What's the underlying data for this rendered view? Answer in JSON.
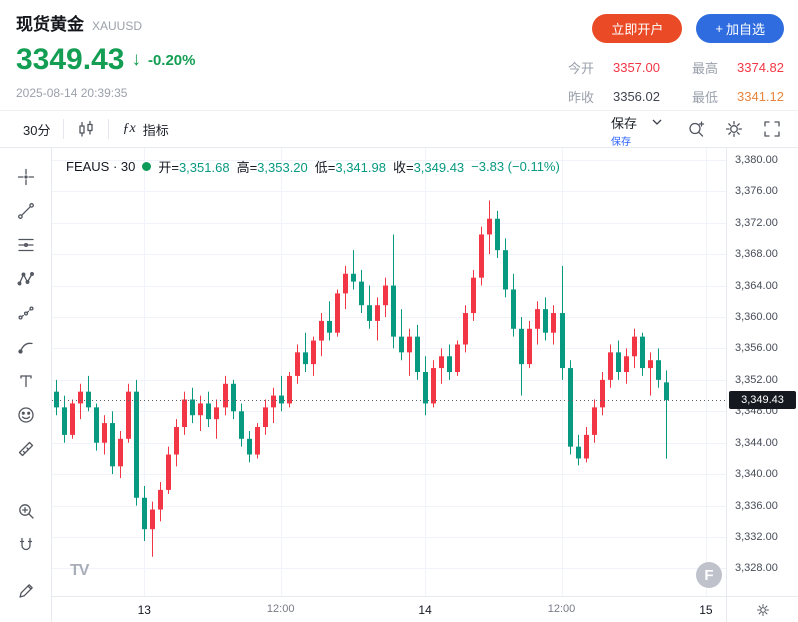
{
  "header": {
    "symbol_name": "现货黄金",
    "symbol_code": "XAUUSD",
    "price": "3349.43",
    "down_arrow": "↓",
    "change_percent": "-0.20%",
    "timestamp": "2025-08-14 20:39:35",
    "open_account": "立即开户",
    "plus": "+",
    "add_watchlist": "加自选",
    "stats": [
      {
        "label": "今开",
        "value": "3357.00",
        "color": "#f23645"
      },
      {
        "label": "最高",
        "value": "3374.82",
        "color": "#f23645"
      },
      {
        "label": "昨收",
        "value": "3356.02",
        "color": "#3f4450"
      },
      {
        "label": "最低",
        "value": "3341.12",
        "color": "#e8853d"
      }
    ],
    "colors": {
      "price_down_green": "#149e53",
      "open_account_bg": "#ea4a25",
      "watchlist_bg": "#2e6ce0"
    }
  },
  "toolbar": {
    "interval": "30分",
    "fx": "ƒx",
    "indicators": "指标",
    "save": "保存",
    "save_sub": "保存",
    "icons": [
      "candlestick-icon",
      "magnifier-icon",
      "settings-gear-icon",
      "fullscreen-icon"
    ]
  },
  "sidebar": {
    "tools": [
      "crosshair",
      "trend-line",
      "fib-retracement",
      "xabcd-pattern",
      "forecast",
      "brush",
      "text",
      "emoji",
      "ruler",
      "zoom-in",
      "magnet",
      "pencil"
    ]
  },
  "chart": {
    "legend": {
      "series": "FEAUS · 30",
      "o_label": "开=",
      "o": "3,351.68",
      "h_label": "高=",
      "h": "3,353.20",
      "l_label": "低=",
      "l": "3,341.98",
      "c_label": "收=",
      "c": "3,349.43",
      "change": "−3.83 (−0.11%)"
    },
    "price_badge": "3,349.43",
    "tv_logo": "TV",
    "watermark": "F"
  },
  "chart_data": {
    "type": "candlestick",
    "title": "现货黄金 XAUUSD 30分K线",
    "interval": "30m",
    "slots": 84,
    "ylim": [
      3324.5,
      3381.5
    ],
    "y_ticks": [
      3380,
      3376,
      3372,
      3368,
      3364,
      3360,
      3356,
      3352,
      3348,
      3344,
      3340,
      3336,
      3332,
      3328
    ],
    "x_ticks": [
      {
        "slot": 11,
        "label": "13",
        "major": true
      },
      {
        "slot": 28,
        "label": "12:00",
        "major": false
      },
      {
        "slot": 46,
        "label": "14",
        "major": true
      },
      {
        "slot": 63,
        "label": "12:00",
        "major": false
      },
      {
        "slot": 81,
        "label": "15",
        "major": true
      }
    ],
    "grid": true,
    "grid_color": "#f0f3fa",
    "up_color": "#f23645",
    "down_color": "#089981",
    "current_price": 3349.43,
    "price_line_color": "#59616f",
    "candles": [
      [
        3350.5,
        3352.0,
        3347.5,
        3348.5
      ],
      [
        3348.5,
        3350.0,
        3344.0,
        3345.0
      ],
      [
        3345.0,
        3349.5,
        3344.5,
        3349.0
      ],
      [
        3349.0,
        3351.5,
        3347.0,
        3350.5
      ],
      [
        3350.5,
        3352.5,
        3348.0,
        3348.5
      ],
      [
        3348.5,
        3349.0,
        3343.0,
        3344.0
      ],
      [
        3344.0,
        3347.5,
        3342.5,
        3346.5
      ],
      [
        3346.5,
        3348.0,
        3340.0,
        3341.0
      ],
      [
        3341.0,
        3345.5,
        3339.5,
        3344.5
      ],
      [
        3344.5,
        3351.5,
        3344.0,
        3350.5
      ],
      [
        3350.5,
        3352.0,
        3336.0,
        3337.0
      ],
      [
        3337.0,
        3338.5,
        3331.5,
        3333.0
      ],
      [
        3333.0,
        3336.5,
        3329.5,
        3335.5
      ],
      [
        3335.5,
        3339.0,
        3334.0,
        3338.0
      ],
      [
        3338.0,
        3343.5,
        3337.5,
        3342.5
      ],
      [
        3342.5,
        3347.0,
        3341.0,
        3346.0
      ],
      [
        3346.0,
        3350.5,
        3345.0,
        3349.5
      ],
      [
        3349.5,
        3351.0,
        3346.5,
        3347.5
      ],
      [
        3347.5,
        3350.0,
        3345.5,
        3349.0
      ],
      [
        3349.0,
        3350.5,
        3346.0,
        3347.0
      ],
      [
        3347.0,
        3349.5,
        3344.5,
        3348.5
      ],
      [
        3348.5,
        3352.5,
        3347.5,
        3351.5
      ],
      [
        3351.5,
        3352.0,
        3347.0,
        3348.0
      ],
      [
        3348.0,
        3349.0,
        3343.5,
        3344.5
      ],
      [
        3344.5,
        3345.5,
        3341.5,
        3342.5
      ],
      [
        3342.5,
        3346.5,
        3342.0,
        3346.0
      ],
      [
        3346.0,
        3349.5,
        3345.0,
        3348.5
      ],
      [
        3348.5,
        3351.0,
        3346.5,
        3350.0
      ],
      [
        3350.0,
        3352.5,
        3348.0,
        3349.0
      ],
      [
        3349.0,
        3353.0,
        3348.5,
        3352.5
      ],
      [
        3352.5,
        3356.5,
        3351.5,
        3355.5
      ],
      [
        3355.5,
        3358.0,
        3353.0,
        3354.0
      ],
      [
        3354.0,
        3357.5,
        3352.5,
        3357.0
      ],
      [
        3357.0,
        3360.5,
        3355.0,
        3359.5
      ],
      [
        3359.5,
        3362.0,
        3357.0,
        3358.0
      ],
      [
        3358.0,
        3363.5,
        3357.5,
        3363.0
      ],
      [
        3363.0,
        3366.5,
        3361.0,
        3365.5
      ],
      [
        3365.5,
        3368.5,
        3363.5,
        3364.5
      ],
      [
        3364.5,
        3366.0,
        3360.5,
        3361.5
      ],
      [
        3361.5,
        3364.0,
        3358.5,
        3359.5
      ],
      [
        3359.5,
        3362.5,
        3357.0,
        3361.5
      ],
      [
        3361.5,
        3365.0,
        3360.0,
        3364.0
      ],
      [
        3364.0,
        3370.5,
        3356.0,
        3357.5
      ],
      [
        3357.5,
        3361.0,
        3354.5,
        3355.5
      ],
      [
        3355.5,
        3358.5,
        3352.5,
        3357.5
      ],
      [
        3357.5,
        3359.0,
        3352.0,
        3353.0
      ],
      [
        3353.0,
        3355.0,
        3347.5,
        3349.0
      ],
      [
        3349.0,
        3354.5,
        3348.5,
        3353.5
      ],
      [
        3353.5,
        3356.0,
        3351.5,
        3355.0
      ],
      [
        3355.0,
        3356.5,
        3352.0,
        3353.0
      ],
      [
        3353.0,
        3357.0,
        3352.5,
        3356.5
      ],
      [
        3356.5,
        3361.5,
        3355.5,
        3360.5
      ],
      [
        3360.5,
        3366.0,
        3359.5,
        3365.0
      ],
      [
        3365.0,
        3371.5,
        3364.0,
        3370.5
      ],
      [
        3370.5,
        3374.82,
        3368.0,
        3372.5
      ],
      [
        3372.5,
        3373.5,
        3367.5,
        3368.5
      ],
      [
        3368.5,
        3370.0,
        3362.5,
        3363.5
      ],
      [
        3363.5,
        3365.5,
        3357.5,
        3358.5
      ],
      [
        3358.5,
        3360.0,
        3350.0,
        3354.0
      ],
      [
        3354.0,
        3359.5,
        3353.5,
        3358.5
      ],
      [
        3358.5,
        3362.0,
        3356.5,
        3361.0
      ],
      [
        3361.0,
        3362.5,
        3357.0,
        3358.0
      ],
      [
        3358.0,
        3361.5,
        3356.5,
        3360.5
      ],
      [
        3360.5,
        3366.5,
        3352.0,
        3353.5
      ],
      [
        3353.5,
        3354.5,
        3342.5,
        3343.5
      ],
      [
        3343.5,
        3345.0,
        3341.12,
        3342.0
      ],
      [
        3342.0,
        3346.0,
        3341.5,
        3345.0
      ],
      [
        3345.0,
        3349.5,
        3344.0,
        3348.5
      ],
      [
        3348.5,
        3353.0,
        3347.5,
        3352.0
      ],
      [
        3352.0,
        3356.5,
        3351.0,
        3355.5
      ],
      [
        3355.5,
        3357.0,
        3352.0,
        3353.0
      ],
      [
        3353.0,
        3356.0,
        3351.5,
        3355.0
      ],
      [
        3355.0,
        3358.5,
        3353.5,
        3357.5
      ],
      [
        3357.5,
        3358.0,
        3352.5,
        3353.5
      ],
      [
        3353.5,
        3355.5,
        3350.0,
        3354.5
      ],
      [
        3354.5,
        3356.0,
        3351.0,
        3352.0
      ],
      [
        3351.68,
        3353.2,
        3341.98,
        3349.43
      ]
    ]
  }
}
